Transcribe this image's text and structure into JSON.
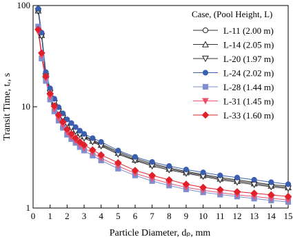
{
  "chart_data": {
    "type": "line",
    "xlabel": "Particle Diameter, dₚ, mm",
    "ylabel": "Transit Time, tᵣ, s",
    "legend_title": "Case, (Pool Height, L)",
    "legend": "top-right",
    "yscale": "log",
    "xlim": [
      0,
      15
    ],
    "xticks": [
      0,
      1,
      2,
      3,
      4,
      5,
      6,
      7,
      8,
      9,
      10,
      11,
      12,
      13,
      14,
      15
    ],
    "ylim": [
      1,
      100
    ],
    "yticks": [
      1,
      10,
      100
    ],
    "x": [
      0.3,
      0.5,
      0.75,
      1,
      1.25,
      1.5,
      1.75,
      2,
      2.25,
      2.5,
      2.75,
      3,
      3.5,
      4,
      5,
      6,
      7,
      8,
      9,
      10,
      11,
      12,
      13,
      14,
      15
    ],
    "series": [
      {
        "name": "L-11 (2.00 m)",
        "color": "#333333",
        "marker": "circle-open",
        "values": [
          90,
          52,
          21,
          14.5,
          11.5,
          9.5,
          8.2,
          7.2,
          6.6,
          6.0,
          5.6,
          5.2,
          4.7,
          4.3,
          3.6,
          3.1,
          2.75,
          2.5,
          2.3,
          2.15,
          2.0,
          1.9,
          1.8,
          1.7,
          1.65
        ]
      },
      {
        "name": "L-14 (2.05 m)",
        "color": "#333333",
        "marker": "triangle-up-open",
        "values": [
          89,
          51,
          20.5,
          14.2,
          11.2,
          9.3,
          8.0,
          7.0,
          6.4,
          5.9,
          5.5,
          5.1,
          4.6,
          4.2,
          3.5,
          3.0,
          2.68,
          2.44,
          2.25,
          2.1,
          1.95,
          1.85,
          1.75,
          1.66,
          1.6
        ]
      },
      {
        "name": "L-20 (1.97 m)",
        "color": "#333333",
        "marker": "triangle-down-open",
        "values": [
          88,
          50,
          20,
          13.8,
          10.9,
          9.0,
          7.8,
          6.8,
          6.2,
          5.7,
          5.3,
          4.9,
          4.5,
          4.1,
          3.4,
          2.95,
          2.6,
          2.38,
          2.2,
          2.05,
          1.9,
          1.8,
          1.7,
          1.62,
          1.56
        ]
      },
      {
        "name": "L-24 (2.02 m)",
        "color": "#3a5fb0",
        "marker": "circle",
        "values": [
          93,
          54,
          22,
          15.2,
          12,
          9.9,
          8.6,
          7.5,
          6.9,
          6.3,
          5.8,
          5.4,
          4.9,
          4.5,
          3.7,
          3.2,
          2.85,
          2.6,
          2.4,
          2.25,
          2.1,
          2.0,
          1.9,
          1.8,
          1.72
        ]
      },
      {
        "name": "L-28 (1.44 m)",
        "color": "#7f8fd0",
        "marker": "square",
        "values": [
          62,
          30,
          18,
          11.8,
          9.0,
          7.3,
          6.2,
          5.3,
          4.8,
          4.4,
          4.0,
          3.7,
          3.3,
          2.95,
          2.45,
          2.1,
          1.85,
          1.67,
          1.53,
          1.43,
          1.36,
          1.3,
          1.24,
          1.19,
          1.15
        ]
      },
      {
        "name": "L-31 (1.45 m)",
        "color": "#f0506a",
        "marker": "triangle-down",
        "values": [
          55,
          32,
          19,
          12.5,
          9.5,
          7.7,
          6.6,
          5.6,
          5.0,
          4.6,
          4.2,
          3.9,
          3.5,
          3.1,
          2.6,
          2.2,
          1.95,
          1.75,
          1.6,
          1.5,
          1.42,
          1.35,
          1.3,
          1.25,
          1.2
        ]
      },
      {
        "name": "L-33 (1.60 m)",
        "color": "#e0202a",
        "marker": "diamond",
        "values": [
          58,
          34,
          20,
          13.5,
          10.2,
          8.3,
          7.1,
          6.0,
          5.4,
          4.9,
          4.5,
          4.2,
          3.75,
          3.35,
          2.8,
          2.35,
          2.1,
          1.9,
          1.72,
          1.6,
          1.52,
          1.45,
          1.4,
          1.35,
          1.3
        ]
      }
    ]
  }
}
